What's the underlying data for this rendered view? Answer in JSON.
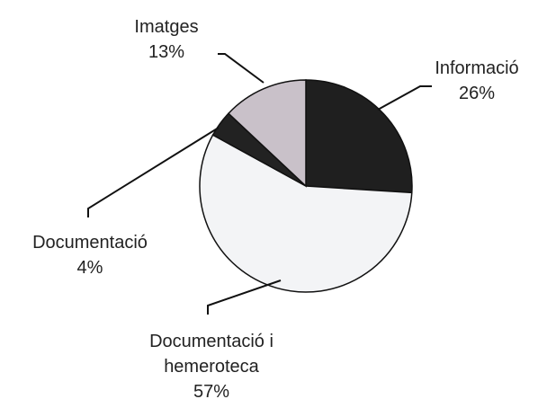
{
  "chart_data": {
    "type": "pie",
    "categories": [
      "Informació",
      "Documentació i hemeroteca",
      "Documentació",
      "Imatges"
    ],
    "values": [
      26,
      57,
      4,
      13
    ],
    "value_labels": [
      "26%",
      "57%",
      "4%",
      "13%"
    ],
    "colors": [
      "#1f1f1f",
      "#f3f4f6",
      "#222222",
      "#c9c1c9"
    ]
  }
}
